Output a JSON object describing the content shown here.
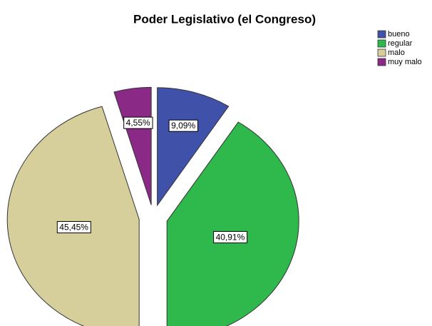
{
  "chart_data": {
    "type": "pie",
    "title": "Poder Legislativo (el Congreso)",
    "categories": [
      "bueno",
      "regular",
      "malo",
      "muy malo"
    ],
    "values": [
      9.09,
      40.91,
      45.45,
      4.55
    ],
    "value_labels": [
      "9,09%",
      "40,91%",
      "45,45%",
      "4,55%"
    ],
    "colors": [
      "#3f51a8",
      "#2fb84c",
      "#d6cf9b",
      "#8b2a86"
    ],
    "legend": "upper right"
  }
}
